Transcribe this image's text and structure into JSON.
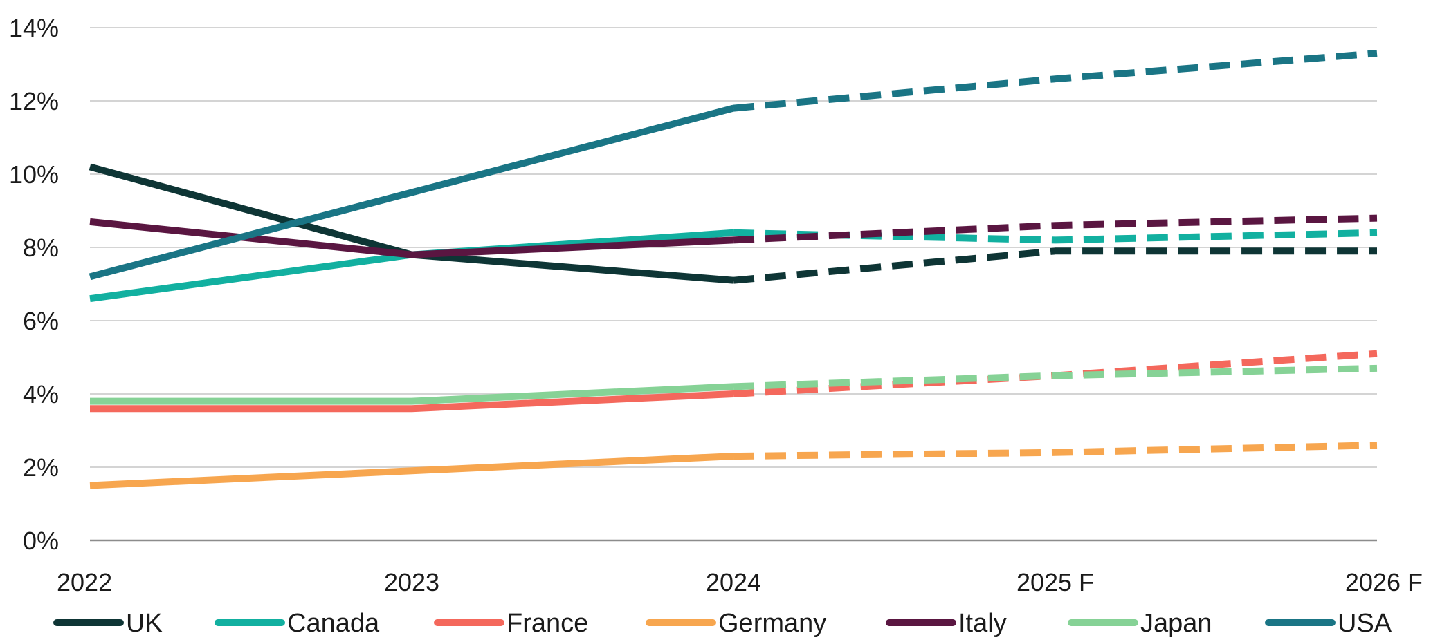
{
  "chart_data": {
    "type": "line",
    "categories": [
      "2022",
      "2023",
      "2024",
      "2025 F",
      "2026 F"
    ],
    "forecast_from_index": 2,
    "ylim": [
      0,
      14
    ],
    "yticks": [
      0,
      2,
      4,
      6,
      8,
      10,
      12,
      14
    ],
    "ytick_suffix": "%",
    "grid": "horizontal",
    "legend_position": "bottom",
    "series": [
      {
        "name": "UK",
        "color": "#0e3535",
        "values": [
          10.2,
          7.8,
          7.1,
          7.9,
          7.9
        ]
      },
      {
        "name": "Canada",
        "color": "#12b0a0",
        "values": [
          6.6,
          7.8,
          8.4,
          8.2,
          8.4
        ]
      },
      {
        "name": "France",
        "color": "#f4685c",
        "values": [
          3.6,
          3.6,
          4.0,
          4.5,
          5.1
        ]
      },
      {
        "name": "Germany",
        "color": "#f7a64f",
        "values": [
          1.5,
          1.9,
          2.3,
          2.4,
          2.6
        ]
      },
      {
        "name": "Italy",
        "color": "#5a1641",
        "values": [
          8.7,
          7.8,
          8.2,
          8.6,
          8.8
        ]
      },
      {
        "name": "Japan",
        "color": "#86d296",
        "values": [
          3.8,
          3.8,
          4.2,
          4.5,
          4.7
        ]
      },
      {
        "name": "USA",
        "color": "#1a7585",
        "values": [
          7.2,
          9.5,
          11.8,
          12.6,
          13.3
        ]
      }
    ]
  }
}
